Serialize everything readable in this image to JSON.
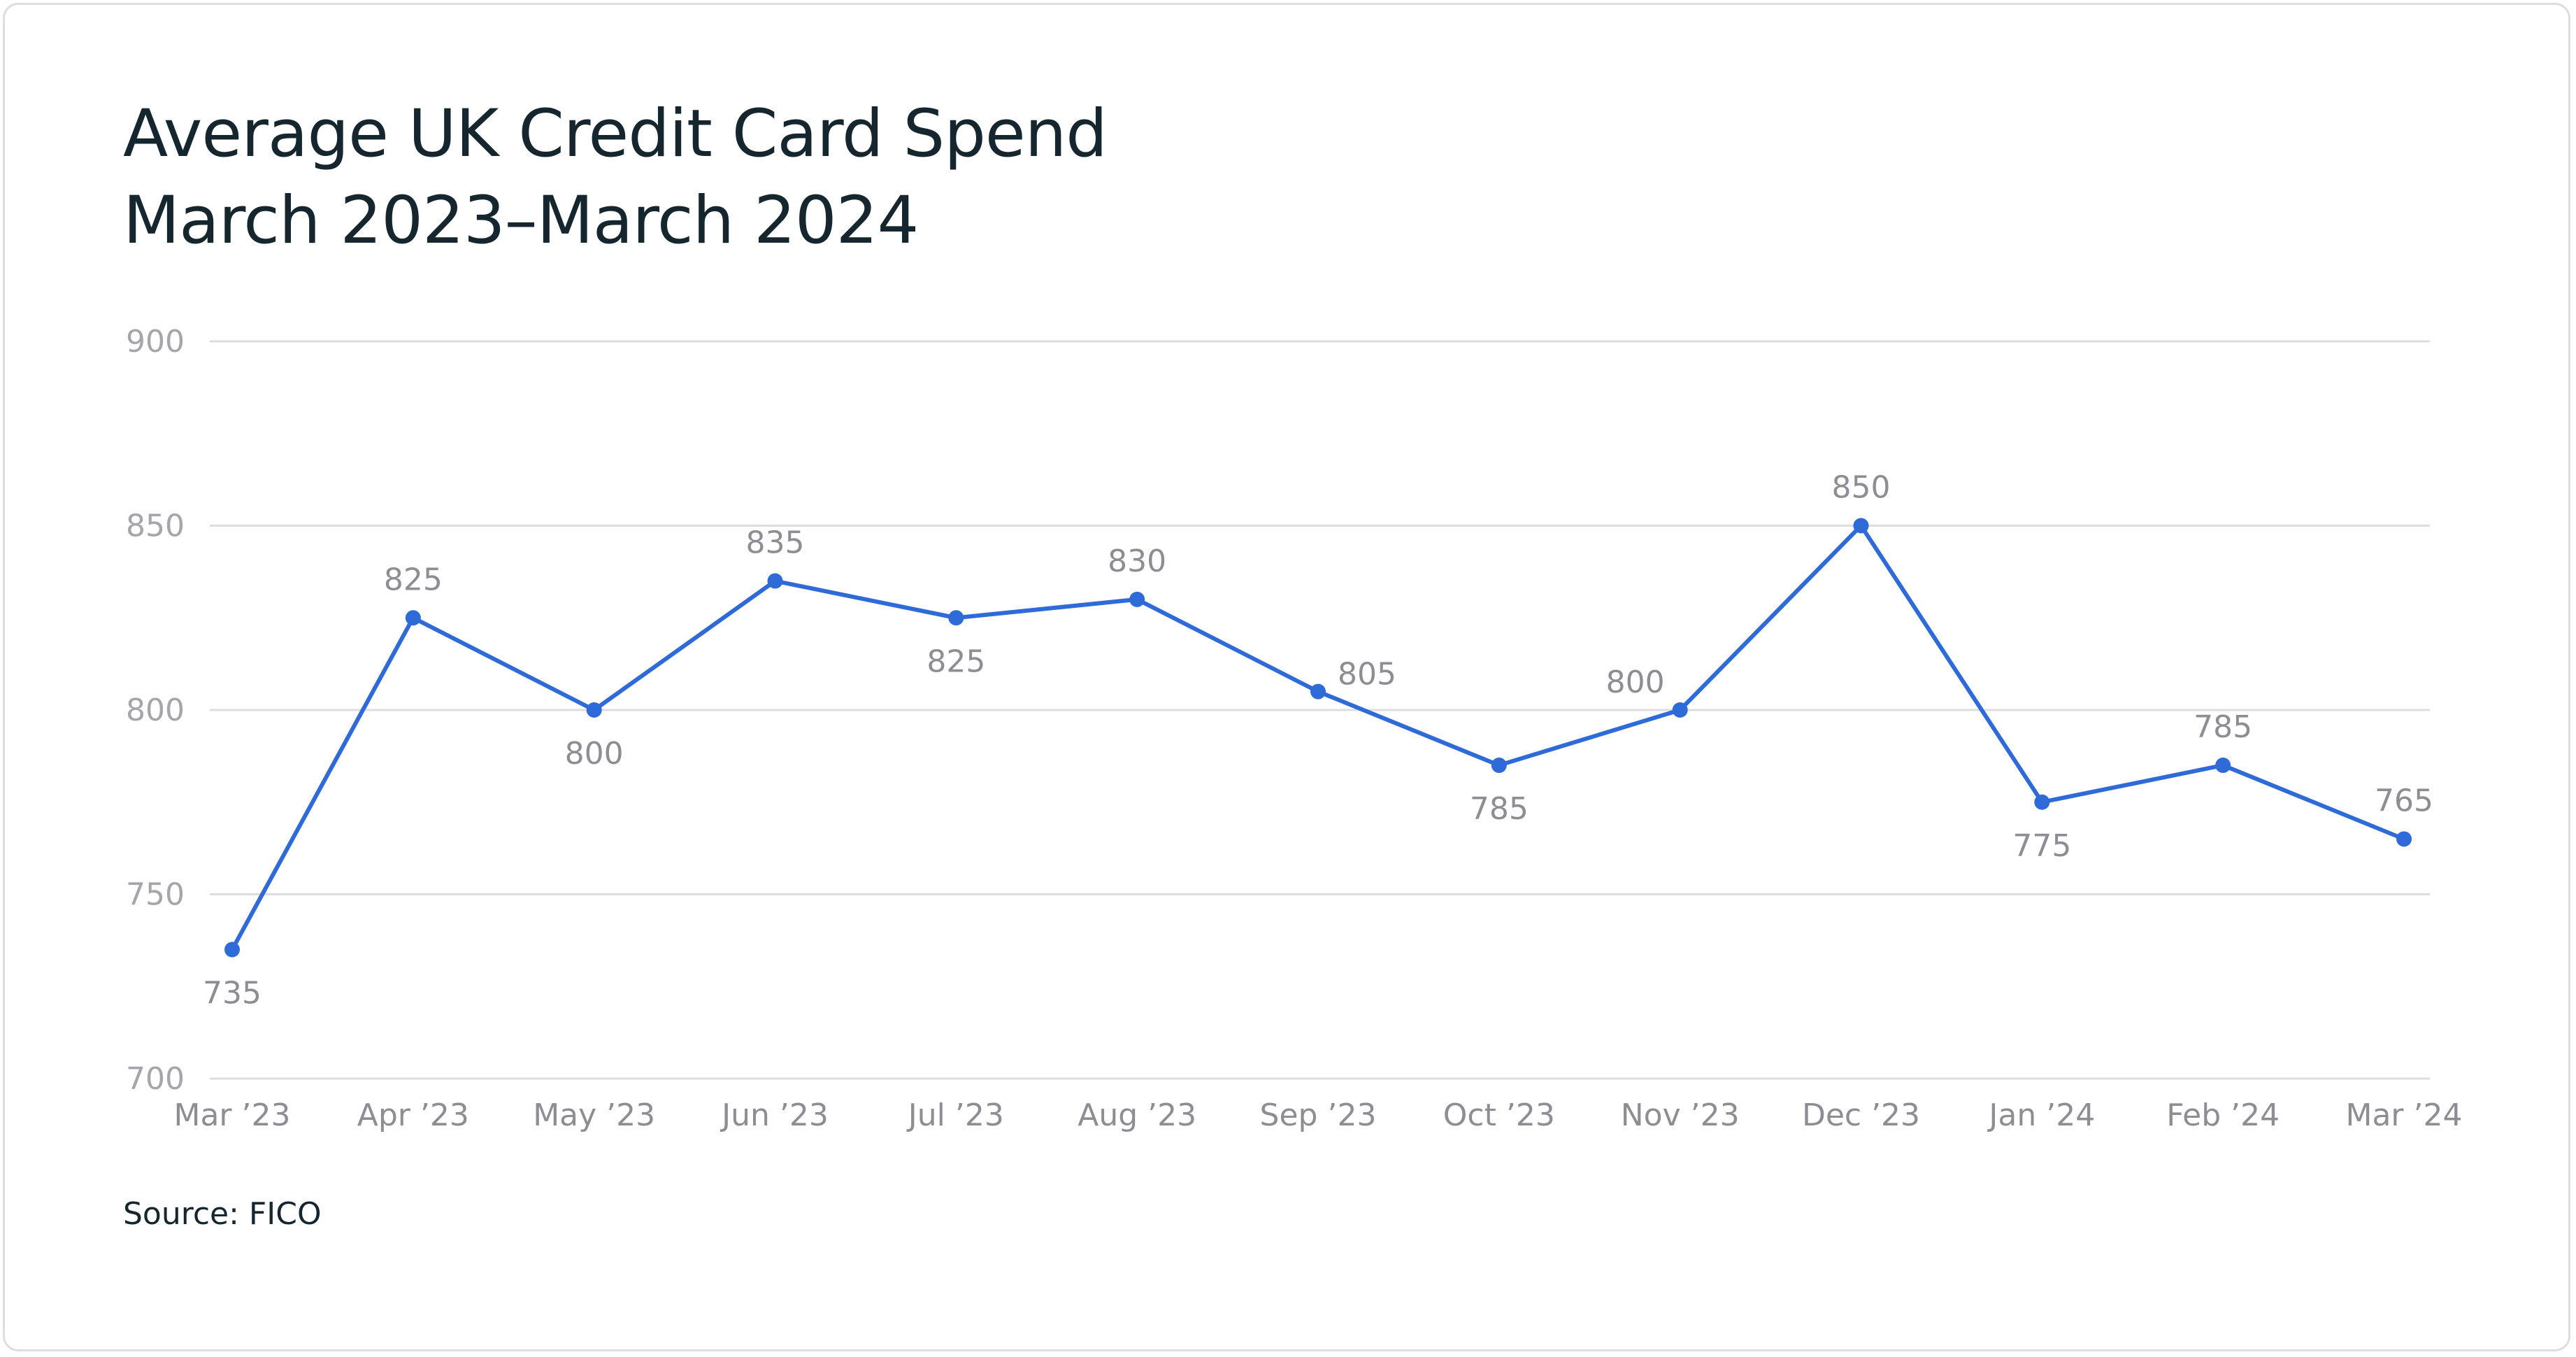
{
  "title_line1": "Average UK Credit Card Spend",
  "title_line2": "March 2023–March 2024",
  "source": "Source: FICO",
  "colors": {
    "line": "#2f6bd8",
    "grid": "#dcdde1",
    "title": "#15262f",
    "tick": "#a4a6ab",
    "label": "#8c8e94"
  },
  "chart_data": {
    "type": "line",
    "categories": [
      "Mar ’23",
      "Apr ’23",
      "May ’23",
      "Jun ’23",
      "Jul ’23",
      "Aug ’23",
      "Sep ’23",
      "Oct ’23",
      "Nov ’23",
      "Dec ’23",
      "Jan ’24",
      "Feb ’24",
      "Mar ’24"
    ],
    "values": [
      735,
      825,
      800,
      835,
      825,
      830,
      805,
      785,
      800,
      850,
      775,
      785,
      765
    ],
    "label_position": [
      "below",
      "above",
      "below",
      "above",
      "below",
      "above",
      "right",
      "below",
      "left",
      "above",
      "below",
      "above",
      "above"
    ],
    "title": "Average UK Credit Card Spend March 2023–March 2024",
    "ylim": [
      700,
      900
    ],
    "yticks": [
      700,
      750,
      800,
      850,
      900
    ],
    "grid": true,
    "legend": "none"
  }
}
